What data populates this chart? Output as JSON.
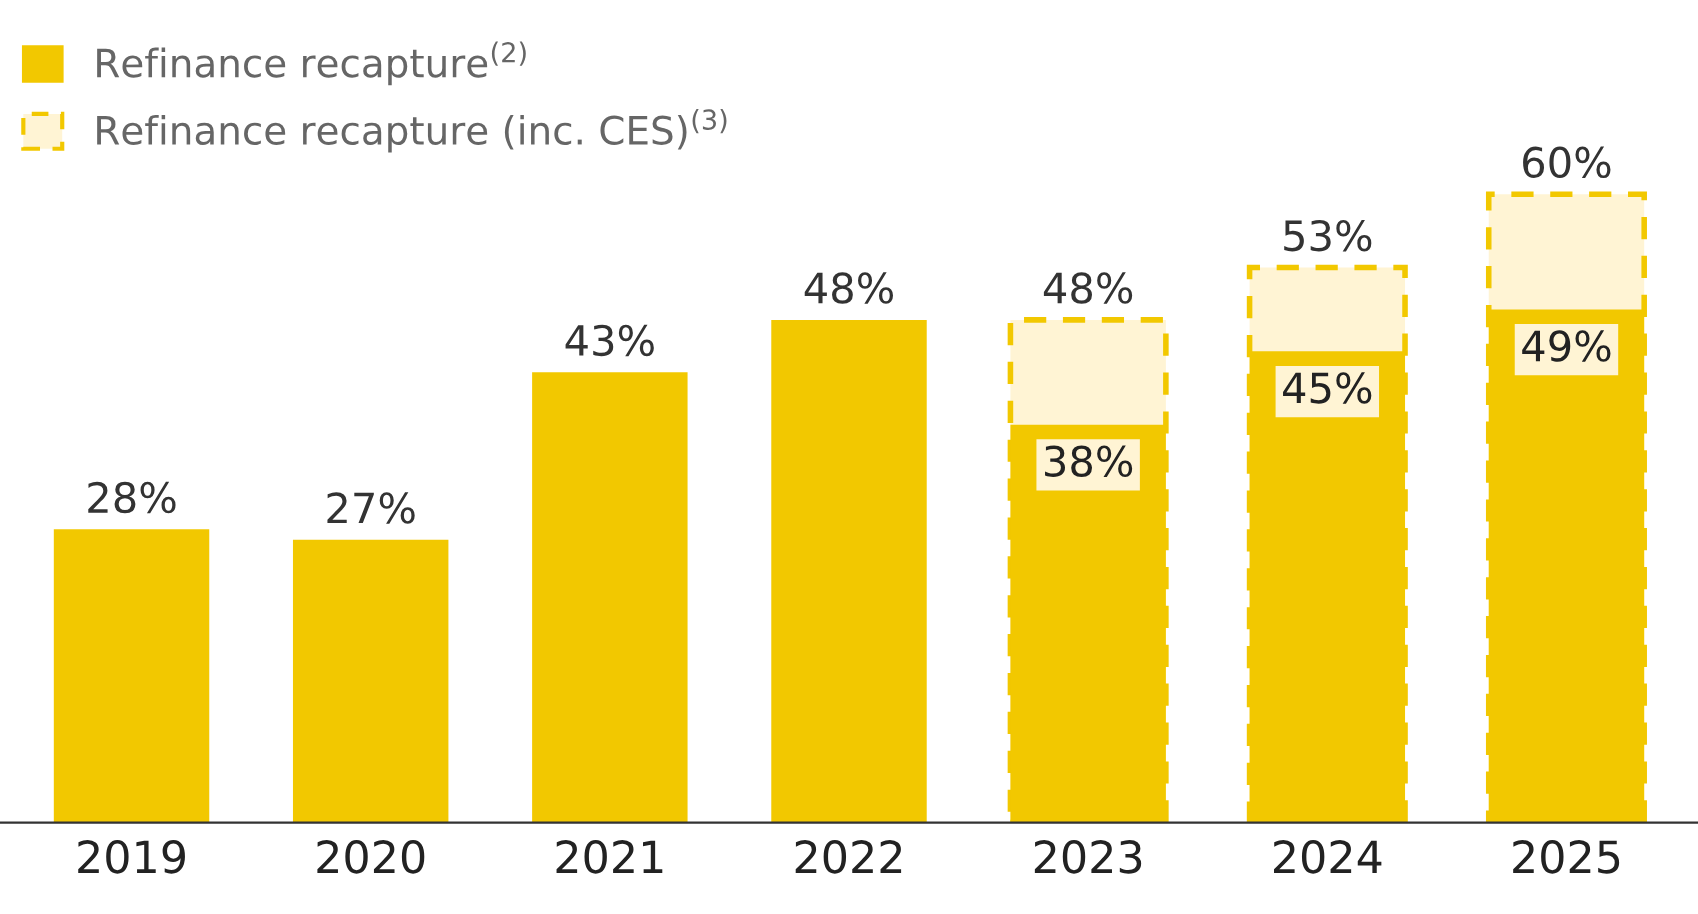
{
  "chart_data": {
    "type": "bar",
    "categories": [
      "2019",
      "2020",
      "2021",
      "2022",
      "2023",
      "2024",
      "2025"
    ],
    "series": [
      {
        "name": "Refinance recapture$^{(2)}$",
        "color": "#f2c800",
        "values": [
          28,
          27,
          43,
          48,
          38,
          45,
          49
        ],
        "value_labels": [
          "28%",
          "27%",
          "43%",
          "48%",
          "38%",
          "45%",
          "49%"
        ]
      },
      {
        "name": "Refinance recapture (inc. CES)$^{(3)}$",
        "color": "#fff4d4",
        "line_style": "dashed",
        "values": [
          null,
          null,
          null,
          null,
          48,
          53,
          60
        ],
        "value_labels": [
          null,
          null,
          null,
          null,
          "48%",
          "53%",
          "60%"
        ]
      }
    ],
    "legend": "top left",
    "grid": false
  }
}
